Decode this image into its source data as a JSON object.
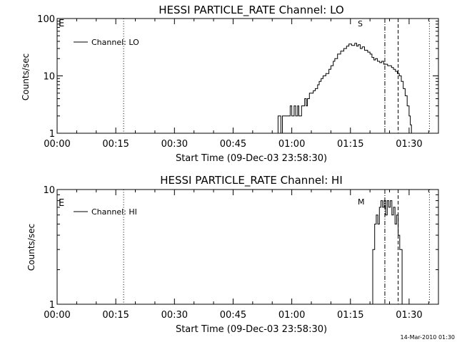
{
  "footer": {
    "timestamp": "14-Mar-2010 01:30"
  },
  "chart_data": [
    {
      "type": "line",
      "title": "HESSI PARTICLE_RATE Channel: LO",
      "xlabel": "Start Time (09-Dec-03 23:58:30)",
      "ylabel": "Counts/sec",
      "yscale": "log",
      "xlim": [
        0,
        97.5
      ],
      "ylim": [
        1,
        100
      ],
      "x_ticks": [
        0,
        15,
        30,
        45,
        60,
        75,
        90
      ],
      "x_tick_labels": [
        "00:00",
        "00:15",
        "00:30",
        "00:45",
        "01:00",
        "01:15",
        "01:30"
      ],
      "y_ticks": [
        1,
        10,
        100
      ],
      "y_tick_labels": [
        "1",
        "10",
        "100"
      ],
      "corner_labels": {
        "left": "E",
        "marker": "S"
      },
      "legend": {
        "position": "top-left",
        "entries": [
          "Channel: LO"
        ]
      },
      "markers": [
        {
          "x": 17,
          "style": "dotted"
        },
        {
          "x": 83.8,
          "style": "dashdot"
        },
        {
          "x": 87.2,
          "style": "dashed"
        },
        {
          "x": 95.2,
          "style": "dotted"
        }
      ],
      "series": [
        {
          "name": "Channel: LO",
          "points": [
            [
              56.5,
              1
            ],
            [
              56.5,
              2
            ],
            [
              57.2,
              1
            ],
            [
              57.6,
              1
            ],
            [
              57.6,
              2
            ],
            [
              59.5,
              2
            ],
            [
              59.6,
              3
            ],
            [
              60,
              2
            ],
            [
              60.3,
              2
            ],
            [
              60.6,
              3
            ],
            [
              61,
              2
            ],
            [
              61.3,
              2
            ],
            [
              61.5,
              3
            ],
            [
              61.8,
              2
            ],
            [
              62.2,
              2
            ],
            [
              62.5,
              3
            ],
            [
              62.8,
              3
            ],
            [
              63.3,
              4
            ],
            [
              63.7,
              3
            ],
            [
              64,
              4
            ],
            [
              64.5,
              5
            ],
            [
              65.5,
              5.5
            ],
            [
              66,
              6
            ],
            [
              66.6,
              7
            ],
            [
              67,
              8
            ],
            [
              67.5,
              9
            ],
            [
              68,
              10
            ],
            [
              68.7,
              11
            ],
            [
              69.5,
              13
            ],
            [
              70,
              15
            ],
            [
              70.6,
              18
            ],
            [
              71,
              20
            ],
            [
              71.7,
              24
            ],
            [
              72.5,
              27
            ],
            [
              73.3,
              30
            ],
            [
              74,
              33
            ],
            [
              74.6,
              36
            ],
            [
              75.3,
              34
            ],
            [
              76.1,
              37
            ],
            [
              76.6,
              33
            ],
            [
              77,
              35
            ],
            [
              77.5,
              30
            ],
            [
              78,
              32
            ],
            [
              78.6,
              28
            ],
            [
              79.4,
              26
            ],
            [
              80,
              24
            ],
            [
              80.5,
              21
            ],
            [
              81,
              19
            ],
            [
              81.4,
              20
            ],
            [
              81.9,
              18
            ],
            [
              82.5,
              17
            ],
            [
              83,
              18
            ],
            [
              83.5,
              16
            ],
            [
              84,
              16
            ],
            [
              84.5,
              15
            ],
            [
              85,
              15
            ],
            [
              85.5,
              14
            ],
            [
              86,
              13
            ],
            [
              86.5,
              12
            ],
            [
              87,
              11
            ],
            [
              87.5,
              10
            ],
            [
              88,
              8
            ],
            [
              88.5,
              6
            ],
            [
              89,
              4.5
            ],
            [
              89.5,
              3
            ],
            [
              90,
              2
            ],
            [
              90.3,
              1.4
            ],
            [
              90.6,
              1
            ]
          ]
        }
      ]
    },
    {
      "type": "line",
      "title": "HESSI PARTICLE_RATE Channel: HI",
      "xlabel": "Start Time (09-Dec-03 23:58:30)",
      "ylabel": "Counts/sec",
      "yscale": "log",
      "xlim": [
        0,
        97.5
      ],
      "ylim": [
        1,
        10
      ],
      "x_ticks": [
        0,
        15,
        30,
        45,
        60,
        75,
        90
      ],
      "x_tick_labels": [
        "00:00",
        "00:15",
        "00:30",
        "00:45",
        "01:00",
        "01:15",
        "01:30"
      ],
      "y_ticks": [
        1,
        10
      ],
      "y_tick_labels": [
        "1",
        "10"
      ],
      "corner_labels": {
        "left": "E",
        "marker": "M"
      },
      "legend": {
        "position": "top-left",
        "entries": [
          "Channel: HI"
        ]
      },
      "markers": [
        {
          "x": 17,
          "style": "dotted"
        },
        {
          "x": 83.8,
          "style": "dashdot"
        },
        {
          "x": 87.2,
          "style": "dashed"
        },
        {
          "x": 95.2,
          "style": "dotted"
        }
      ],
      "series": [
        {
          "name": "Channel: HI",
          "points": [
            [
              80.3,
              1
            ],
            [
              80.7,
              3
            ],
            [
              81.2,
              5
            ],
            [
              81.6,
              6
            ],
            [
              82,
              5
            ],
            [
              82.4,
              7
            ],
            [
              82.8,
              8
            ],
            [
              83.2,
              7
            ],
            [
              83.6,
              8
            ],
            [
              84,
              6
            ],
            [
              84.4,
              8
            ],
            [
              84.8,
              7
            ],
            [
              85.2,
              8
            ],
            [
              85.6,
              6
            ],
            [
              86,
              7
            ],
            [
              86.4,
              5
            ],
            [
              86.8,
              6
            ],
            [
              87.2,
              4
            ],
            [
              87.6,
              3
            ],
            [
              88.2,
              1
            ]
          ]
        }
      ]
    }
  ]
}
